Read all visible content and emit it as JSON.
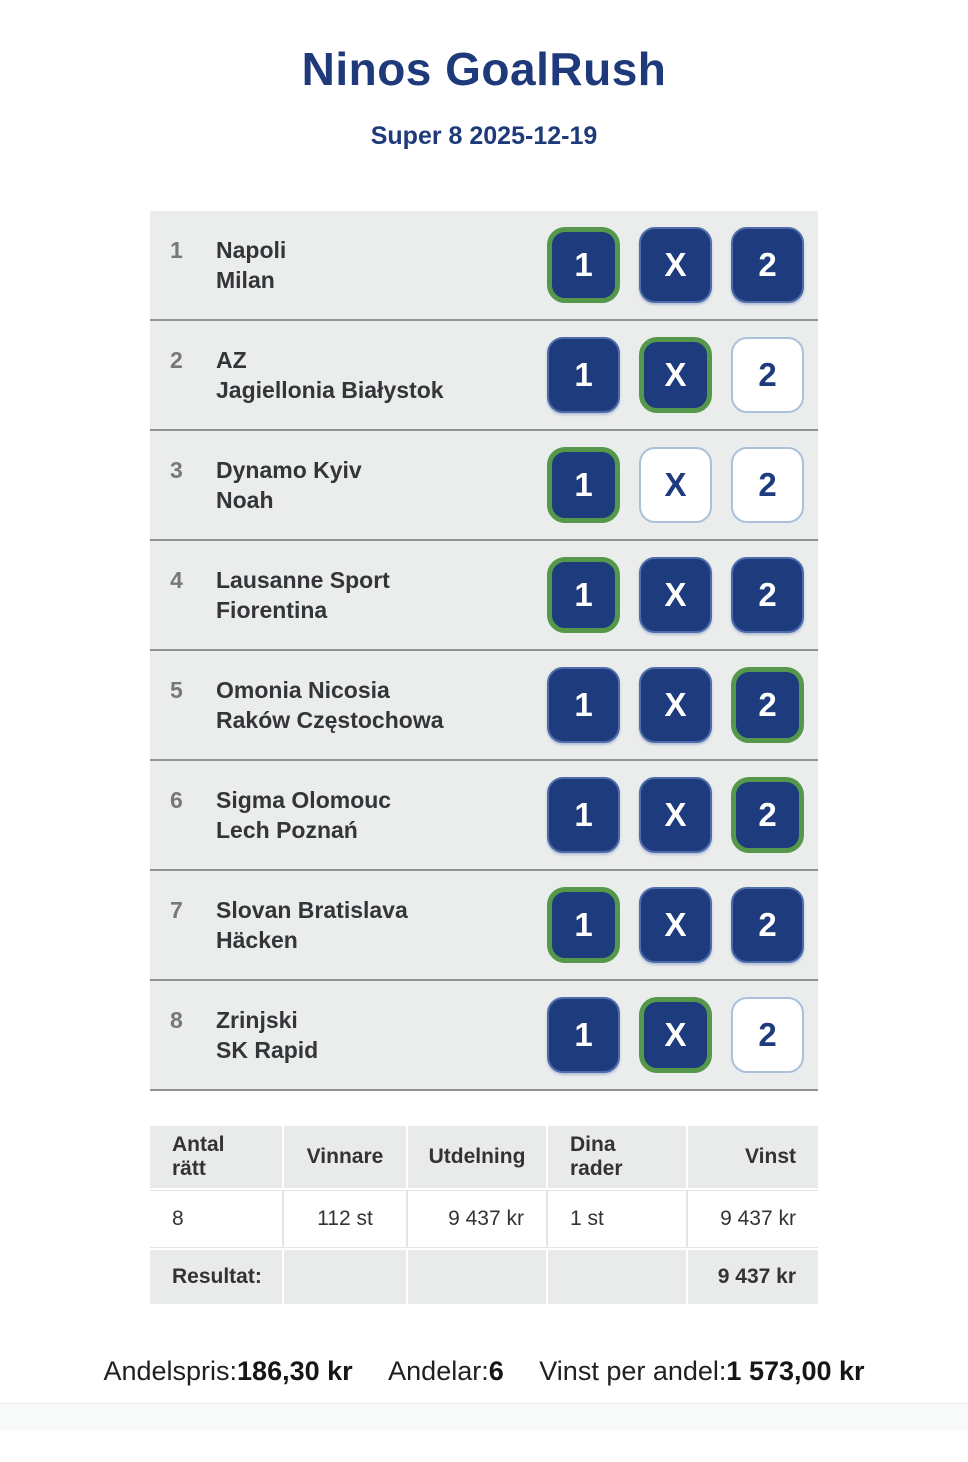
{
  "header": {
    "title": "Ninos GoalRush",
    "subtitle": "Super 8 2025-12-19"
  },
  "options": [
    "1",
    "X",
    "2"
  ],
  "matches": [
    {
      "num": "1",
      "home": "Napoli",
      "away": "Milan",
      "picks": [
        "correct",
        "selected",
        "selected"
      ]
    },
    {
      "num": "2",
      "home": "AZ",
      "away": "Jagiellonia Białystok",
      "picks": [
        "selected",
        "correct",
        "unselected"
      ]
    },
    {
      "num": "3",
      "home": "Dynamo Kyiv",
      "away": "Noah",
      "picks": [
        "correct",
        "unselected",
        "unselected"
      ]
    },
    {
      "num": "4",
      "home": "Lausanne Sport",
      "away": "Fiorentina",
      "picks": [
        "correct",
        "selected",
        "selected"
      ]
    },
    {
      "num": "5",
      "home": "Omonia Nicosia",
      "away": "Raków Częstochowa",
      "picks": [
        "selected",
        "selected",
        "correct"
      ]
    },
    {
      "num": "6",
      "home": "Sigma Olomouc",
      "away": "Lech Poznań",
      "picks": [
        "selected",
        "selected",
        "correct"
      ]
    },
    {
      "num": "7",
      "home": "Slovan Bratislava",
      "away": "Häcken",
      "picks": [
        "correct",
        "selected",
        "selected"
      ]
    },
    {
      "num": "8",
      "home": "Zrinjski",
      "away": "SK Rapid",
      "picks": [
        "selected",
        "correct",
        "unselected"
      ]
    }
  ],
  "results_table": {
    "headers": [
      "Antal rätt",
      "Vinnare",
      "Utdelning",
      "Dina rader",
      "Vinst"
    ],
    "row": [
      "8",
      "112 st",
      "9 437 kr",
      "1 st",
      "9 437 kr"
    ],
    "footer_label": "Resultat:",
    "footer_value": "9 437 kr"
  },
  "summary": [
    {
      "label": "Andelspris:",
      "value": "186,30 kr"
    },
    {
      "label": "Andelar:",
      "value": "6"
    },
    {
      "label": "Vinst per andel:",
      "value": "1 573,00 kr"
    }
  ],
  "colors": {
    "title_navy": "#1e3a7a",
    "button_navy": "#1d3b7d",
    "correct_green": "#55984b",
    "row_bg": "#ebecec",
    "row_border": "#909294",
    "table_bg": "#e9eaea",
    "unselected_border": "#abc0da"
  }
}
